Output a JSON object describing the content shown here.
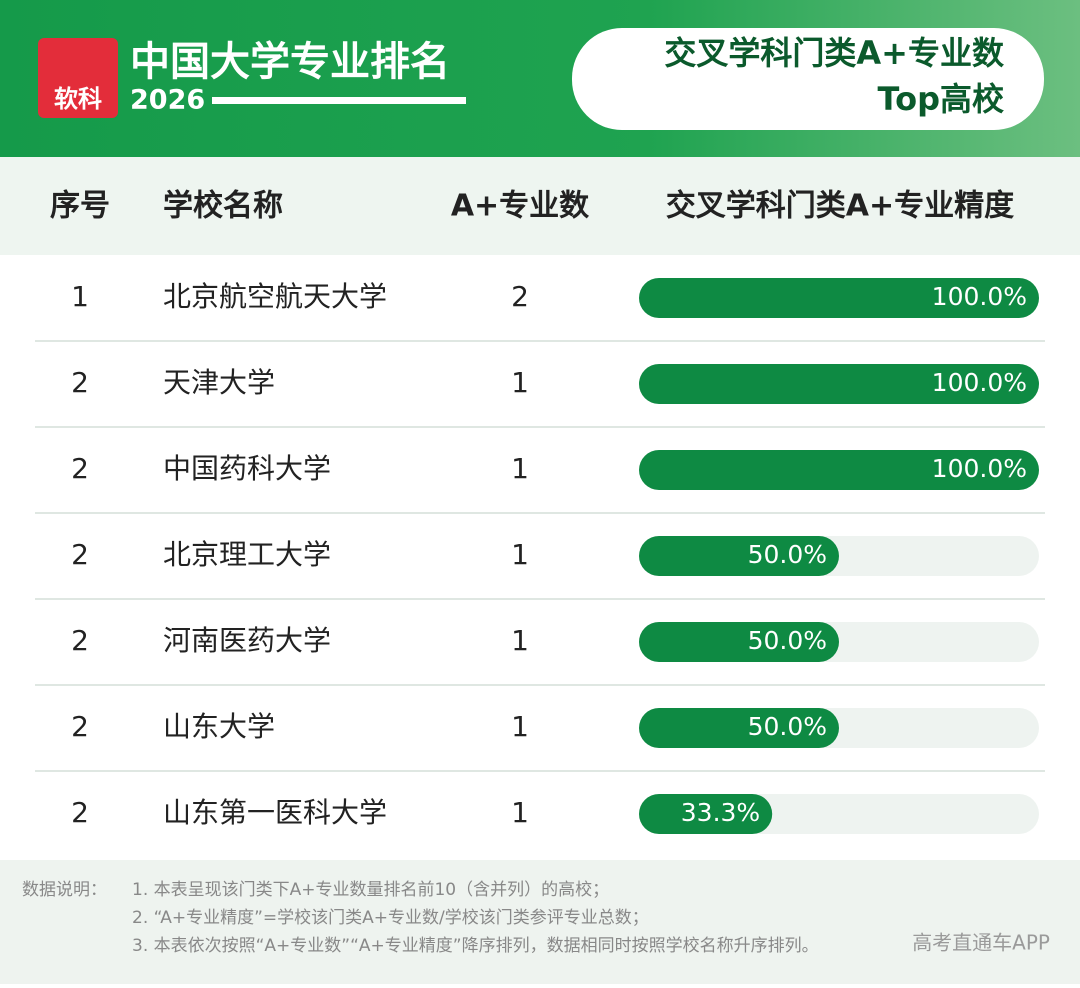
{
  "header": {
    "logo": "软科",
    "title": "中国大学专业排名",
    "year": "2026",
    "badge": [
      "交叉学科门类A+专业数",
      "Top高校"
    ]
  },
  "table": {
    "columns": [
      "序号",
      "学校名称",
      "A+专业数",
      "交叉学科门类A+专业精度"
    ],
    "rows": [
      {
        "rank": 1,
        "school": "北京航空航天大学",
        "count": 2,
        "precision": 100,
        "precision_label": "100.0%"
      },
      {
        "rank": 2,
        "school": "天津大学",
        "count": 1,
        "precision": 100,
        "precision_label": "100.0%"
      },
      {
        "rank": 2,
        "school": "中国药科大学",
        "count": 1,
        "precision": 100,
        "precision_label": "100.0%"
      },
      {
        "rank": 2,
        "school": "北京理工大学",
        "count": 1,
        "precision": 50,
        "precision_label": "50.0%"
      },
      {
        "rank": 2,
        "school": "河南医药大学",
        "count": 1,
        "precision": 50,
        "precision_label": "50.0%"
      },
      {
        "rank": 2,
        "school": "山东大学",
        "count": 1,
        "precision": 50,
        "precision_label": "50.0%"
      },
      {
        "rank": 2,
        "school": "山东第一医科大学",
        "count": 1,
        "precision": 33.3,
        "precision_label": "33.3%"
      }
    ],
    "bar_max": 100
  },
  "notes": {
    "label": "数据说明：",
    "items": [
      "1. 本表呈现该门类下A+专业数量排名前10（含并列）的高校；",
      "2. “A+专业精度”=学校该门类A+专业数/学校该门类参评专业总数；",
      "3. 本表依次按照“A+专业数”“A+专业精度”降序排列，数据相同时按照学校名称升序排列。"
    ]
  },
  "watermark": "高考直通车APP"
}
